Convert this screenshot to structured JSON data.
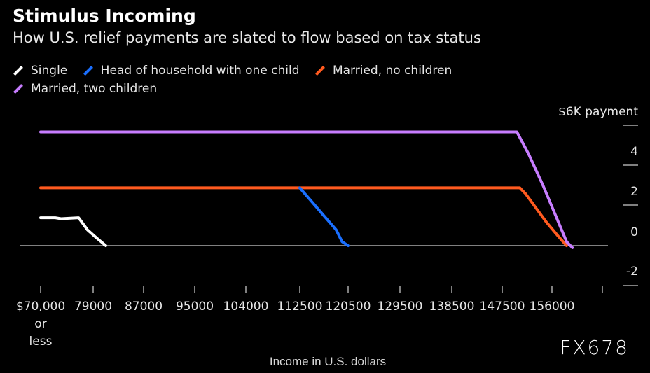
{
  "chart_data": {
    "type": "line",
    "title": "Stimulus Incoming",
    "subtitle": "How U.S. relief payments are slated to flow based on tax status",
    "ylabel": "$6K payment",
    "xlabel": "Income in U.S. dollars",
    "x_ticks": [
      "$70,000",
      "79000",
      "87000",
      "95000",
      "104000",
      "112500",
      "120500",
      "129500",
      "138500",
      "147500",
      "156000"
    ],
    "x_tick_extra": [
      "or",
      "less"
    ],
    "x_tick_values": [
      70000,
      79000,
      87000,
      95000,
      104000,
      112500,
      120500,
      129500,
      138500,
      147500,
      156000
    ],
    "y_ticks": [
      4,
      2,
      0,
      -2
    ],
    "y_tick_labels": [
      "4",
      "2",
      "0",
      "-2"
    ],
    "ylim": [
      -2,
      6
    ],
    "legend_position": "top-left",
    "series": [
      {
        "name": "Single",
        "color": "#ffffff",
        "points": [
          [
            70000,
            1.4
          ],
          [
            72500,
            1.4
          ],
          [
            73500,
            1.35
          ],
          [
            76500,
            1.4
          ],
          [
            78000,
            0.8
          ],
          [
            79500,
            0.4
          ],
          [
            81000,
            0
          ]
        ]
      },
      {
        "name": "Head of household with one child",
        "color": "#1a6fff",
        "points": [
          [
            112500,
            2.9
          ],
          [
            114500,
            2.2
          ],
          [
            116500,
            1.5
          ],
          [
            118500,
            0.8
          ],
          [
            119500,
            0.2
          ],
          [
            120500,
            0
          ]
        ]
      },
      {
        "name": "Married, no children",
        "color": "#ff5a1f",
        "points": [
          [
            70000,
            2.9
          ],
          [
            150500,
            2.9
          ],
          [
            151500,
            2.6
          ],
          [
            153000,
            2.0
          ],
          [
            155000,
            1.2
          ],
          [
            157000,
            0.5
          ],
          [
            158500,
            0
          ]
        ]
      },
      {
        "name": "Married, two children",
        "color": "#c77dff",
        "points": [
          [
            70000,
            5.7
          ],
          [
            150000,
            5.7
          ],
          [
            152000,
            4.6
          ],
          [
            154500,
            3.0
          ],
          [
            156500,
            1.6
          ],
          [
            158500,
            0.2
          ],
          [
            159500,
            -0.1
          ]
        ]
      }
    ]
  },
  "watermark": "FX678"
}
